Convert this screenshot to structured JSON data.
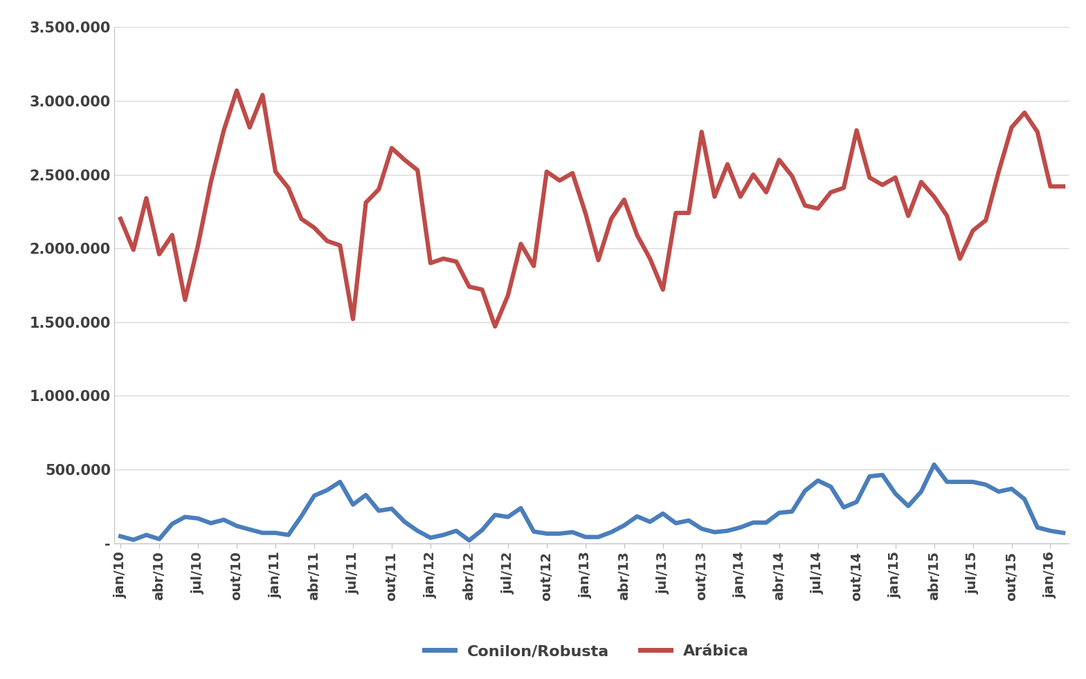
{
  "chart_data": {
    "type": "line",
    "categories": [
      "jan/10",
      null,
      null,
      "abr/10",
      null,
      null,
      "jul/10",
      null,
      null,
      "out/10",
      null,
      null,
      "jan/11",
      null,
      null,
      "abr/11",
      null,
      null,
      "jul/11",
      null,
      null,
      "out/11",
      null,
      null,
      "jan/12",
      null,
      null,
      "abr/12",
      null,
      null,
      "jul/12",
      null,
      null,
      "out/12",
      null,
      null,
      "jan/13",
      null,
      null,
      "abr/13",
      null,
      null,
      "jul/13",
      null,
      null,
      "out/13",
      null,
      null,
      "jan/14",
      null,
      null,
      "abr/14",
      null,
      null,
      "jul/14",
      null,
      null,
      "out/14",
      null,
      null,
      "jan/15",
      null,
      null,
      "abr/15",
      null,
      null,
      "jul/15",
      null,
      null,
      "out/15",
      null,
      null,
      "jan/16",
      null
    ],
    "series": [
      {
        "name": "Conilon/Robusta",
        "color": "#4a7ebb",
        "values": [
          47000,
          23000,
          56000,
          28000,
          131000,
          178000,
          168000,
          136000,
          159000,
          117000,
          93000,
          70000,
          70000,
          56000,
          182000,
          322000,
          360000,
          416000,
          262000,
          327000,
          220000,
          234000,
          145000,
          84000,
          37000,
          56000,
          84000,
          19000,
          89000,
          192000,
          178000,
          238000,
          79000,
          65000,
          65000,
          75000,
          42000,
          42000,
          75000,
          121000,
          182000,
          145000,
          201000,
          136000,
          154000,
          98000,
          75000,
          84000,
          107000,
          140000,
          140000,
          206000,
          215000,
          355000,
          425000,
          383000,
          243000,
          280000,
          453000,
          463000,
          336000,
          252000,
          350000,
          533000,
          416000,
          416000,
          416000,
          397000,
          350000,
          369000,
          299000,
          107000,
          84000,
          70000
        ]
      },
      {
        "name": "Arábica",
        "color": "#be4b48",
        "values": [
          2200000,
          1990000,
          2340000,
          1960000,
          2090000,
          1650000,
          2020000,
          2450000,
          2800000,
          3070000,
          2820000,
          3040000,
          2520000,
          2410000,
          2200000,
          2140000,
          2050000,
          2020000,
          1520000,
          2310000,
          2400000,
          2680000,
          2600000,
          2530000,
          1900000,
          1930000,
          1910000,
          1740000,
          1720000,
          1470000,
          1680000,
          2030000,
          1880000,
          2520000,
          2460000,
          2510000,
          2240000,
          1920000,
          2200000,
          2330000,
          2090000,
          1930000,
          1720000,
          2240000,
          2240000,
          2790000,
          2350000,
          2570000,
          2350000,
          2500000,
          2380000,
          2600000,
          2490000,
          2290000,
          2270000,
          2380000,
          2410000,
          2800000,
          2480000,
          2430000,
          2480000,
          2220000,
          2450000,
          2350000,
          2220000,
          1930000,
          2120000,
          2190000,
          2520000,
          2820000,
          2920000,
          2790000,
          2420000,
          2420000
        ]
      }
    ],
    "ylim": [
      0,
      3500000
    ],
    "yticks": [
      {
        "value": 0,
        "label": "-"
      },
      {
        "value": 500000,
        "label": "500.000"
      },
      {
        "value": 1000000,
        "label": "1.000.000"
      },
      {
        "value": 1500000,
        "label": "1.500.000"
      },
      {
        "value": 2000000,
        "label": "2.000.000"
      },
      {
        "value": 2500000,
        "label": "2.500.000"
      },
      {
        "value": 3000000,
        "label": "3.000.000"
      },
      {
        "value": 3500000,
        "label": "3.500.000"
      }
    ],
    "grid": true,
    "legend": "lower center"
  }
}
